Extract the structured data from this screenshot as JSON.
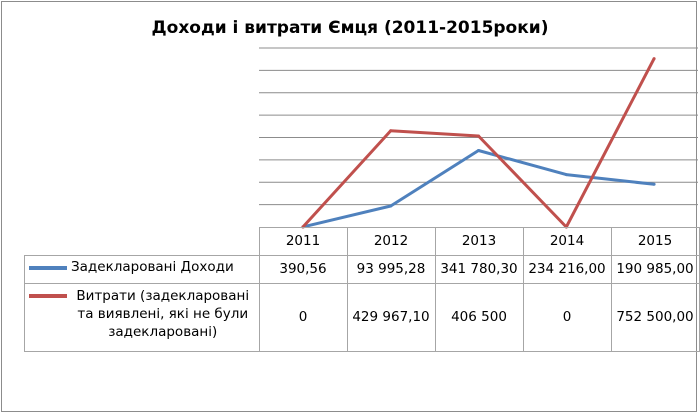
{
  "colors": {
    "income": "#4f81bd",
    "expenses": "#c0504d",
    "grid": "#8c8c8c"
  },
  "chart_data": {
    "type": "line",
    "title": "Доходи і витрати Ємця (2011-2015роки)",
    "categories": [
      "2011",
      "2012",
      "2013",
      "2014",
      "2015"
    ],
    "series": [
      {
        "name": "Задекларовані Доходи",
        "values": [
          390.56,
          93995.28,
          341780.3,
          234216.0,
          190985.0
        ],
        "labels": [
          "390,56",
          "93 995,28",
          "341 780,30",
          "234 216,00",
          "190 985,00"
        ]
      },
      {
        "name": "Витрати (задекларовані та виявлені, які не були задекларовані)",
        "values": [
          0,
          429967.1,
          406500,
          0,
          752500.0
        ],
        "labels": [
          "0",
          "429 967,10",
          "406 500",
          "0",
          "752 500,00"
        ]
      }
    ],
    "ylim": [
      0,
      800000
    ],
    "grid": true,
    "legend": "table-left"
  }
}
